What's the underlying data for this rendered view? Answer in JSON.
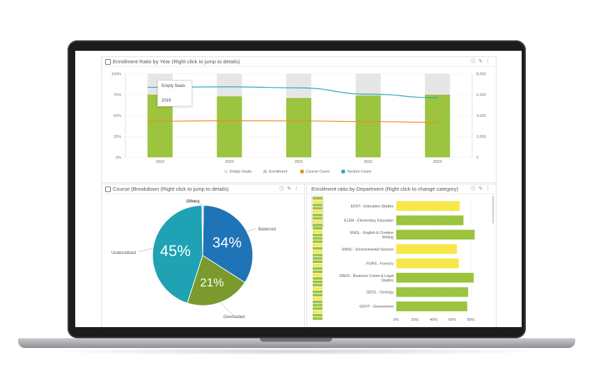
{
  "enrollment_year": {
    "title": "Enrollment Ratio by Year (Right click to jump to details)",
    "tooltip": {
      "title": "Empty Seats",
      "sub": "",
      "year": "2019"
    }
  },
  "breakdown": {
    "title": "Course (Breakdown (Right click to jump to details)"
  },
  "department": {
    "title": "Enrollment ratio by Department (Right click to change category)"
  },
  "header_icons": [
    "info-icon",
    "edit-icon",
    "more-icon"
  ],
  "chart_data": [
    {
      "type": "bar",
      "title": "Enrollment Ratio by Year (Right click to jump to details)",
      "categories": [
        "2019",
        "2020",
        "2021",
        "2022",
        "2023"
      ],
      "left_ticks": [
        "100%",
        "75%",
        "50%",
        "25%",
        "0%"
      ],
      "right_ticks": [
        "8,000",
        "6,000",
        "4,000",
        "2,000",
        "0"
      ],
      "ylim_left": [
        0,
        100
      ],
      "ylim_right": [
        0,
        8000
      ],
      "series": [
        {
          "name": "Empty Seats",
          "type": "bar-stack",
          "color": "#e6e6e6",
          "values": [
            25,
            27,
            29,
            26,
            25
          ]
        },
        {
          "name": "Enrollment",
          "type": "bar",
          "color": "#9bc43f",
          "values": [
            75,
            73,
            71,
            74,
            75
          ]
        },
        {
          "name": "Course Count",
          "type": "line",
          "axis": "right",
          "color": "#f08a24",
          "values": [
            3450,
            3500,
            3480,
            3420,
            3350
          ]
        },
        {
          "name": "Section Count",
          "type": "line",
          "axis": "right",
          "color": "#2aa7b8",
          "values": [
            6700,
            6750,
            6650,
            6050,
            5700
          ]
        }
      ],
      "legend": [
        "Empty Seats",
        "Enrollment",
        "Course Count",
        "Section Count"
      ],
      "legend_colors": [
        "#e6e6e6",
        "#cccccc",
        "#f08a24",
        "#2aa7b8"
      ],
      "legend_position": "bottom"
    },
    {
      "type": "pie",
      "title": "Course (Breakdown (Right click to jump to details)",
      "slices": [
        {
          "name": "Balanced",
          "value": 34,
          "label": "34%",
          "color": "#1f74b8"
        },
        {
          "name": "Overloaded",
          "value": 21,
          "label": "21%",
          "color": "#7a9a2e"
        },
        {
          "name": "Underutilized",
          "value": 45,
          "label": "45%",
          "color": "#1ea2b4"
        },
        {
          "name": "Others",
          "value": 0.5,
          "label": "",
          "color": "#dddddd"
        }
      ]
    },
    {
      "type": "bar",
      "orientation": "horizontal",
      "title": "Enrollment ratio by Department (Right click to change category)",
      "categories": [
        "EDST - Education Studies",
        "ELEM - Elementary Education",
        "ENGL - English & Creative Writing",
        "ENSC - Environmental Science",
        "FORS - Forestry",
        "GBUS - Business Comm & Legal Studies",
        "GEOL - Geology",
        "GOVT - Government"
      ],
      "values": [
        68,
        72,
        84,
        65,
        67,
        83,
        77,
        76
      ],
      "colors": [
        "#f7e74a",
        "#9bc43f",
        "#9bc43f",
        "#f7e74a",
        "#f7e74a",
        "#9bc43f",
        "#9bc43f",
        "#9bc43f"
      ],
      "x_ticks": [
        "0%",
        "20%",
        "40%",
        "60%",
        "80%"
      ],
      "xlim": [
        0,
        100
      ]
    }
  ],
  "minimap_colors": [
    "#9bc43f",
    "#f7e74a",
    "#9bc43f",
    "#9bc43f",
    "#f7e74a",
    "#9bc43f",
    "#9bc43f",
    "#f7e74a",
    "#9bc43f",
    "#9bc43f",
    "#f7e74a",
    "#9bc43f",
    "#9bc43f",
    "#9bc43f",
    "#f7e74a",
    "#9bc43f",
    "#f7e74a",
    "#9bc43f",
    "#9bc43f",
    "#9bc43f",
    "#f7e74a",
    "#9bc43f",
    "#9bc43f",
    "#f7e74a",
    "#9bc43f",
    "#9bc43f",
    "#9bc43f",
    "#f7e74a",
    "#9bc43f",
    "#9bc43f",
    "#f7e74a",
    "#9bc43f",
    "#9bc43f",
    "#9bc43f",
    "#f7e74a",
    "#9bc43f",
    "#9bc43f"
  ]
}
